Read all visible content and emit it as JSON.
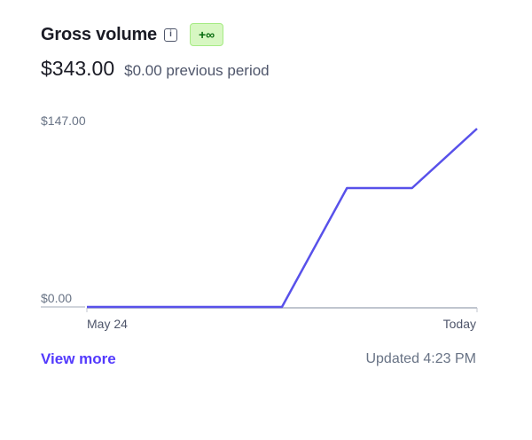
{
  "header": {
    "title": "Gross volume",
    "info_icon": "info-icon",
    "badge": "+∞"
  },
  "summary": {
    "amount": "$343.00",
    "previous": "$0.00 previous period"
  },
  "footer": {
    "view_more": "View more",
    "updated": "Updated 4:23 PM"
  },
  "colors": {
    "line": "#5851ea",
    "axis": "#c0c5cf",
    "link": "#533afd",
    "badge_bg": "#d7f7c2",
    "badge_text": "#05690d"
  },
  "chart_data": {
    "type": "line",
    "title": "Gross volume",
    "x": [
      "May 24",
      "",
      "",
      "",
      "",
      "",
      "Today"
    ],
    "x_tick_labels": [
      "May 24",
      "Today"
    ],
    "values": [
      0,
      0,
      0,
      0,
      98,
      98,
      147
    ],
    "y_tick_labels": [
      "$0.00",
      "$147.00"
    ],
    "ylim": [
      0,
      147
    ],
    "xlabel": "",
    "ylabel": "",
    "grid": false,
    "legend": null
  }
}
